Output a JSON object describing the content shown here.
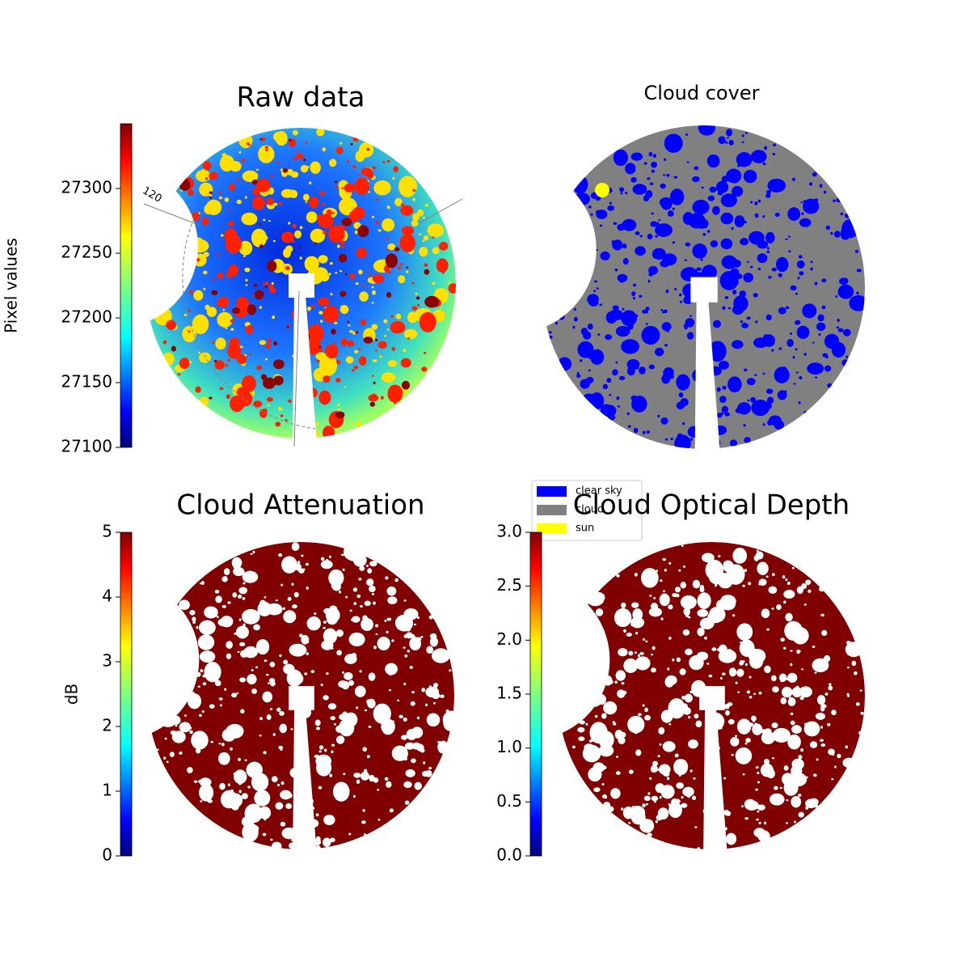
{
  "chart_data": [
    {
      "type": "image",
      "title": "Raw data",
      "colorbar_label": "Pixel values",
      "colormap": "jet",
      "clim": [
        27100,
        27350
      ],
      "cticks": [
        27100,
        27150,
        27200,
        27250,
        27300
      ],
      "annotations": [
        "120"
      ]
    },
    {
      "type": "categorical-image",
      "title": "Cloud cover",
      "series": [
        {
          "name": "clear sky",
          "color": "#0000ff"
        },
        {
          "name": "cloud",
          "color": "#808080"
        },
        {
          "name": "sun",
          "color": "#ffff00"
        }
      ]
    },
    {
      "type": "image",
      "title": "Cloud Attenuation",
      "colorbar_label": "dB",
      "colormap": "jet",
      "clim": [
        0,
        5
      ],
      "cticks": [
        0,
        1,
        2,
        3,
        4,
        5
      ]
    },
    {
      "type": "image",
      "title": "Cloud Optical Depth",
      "colormap": "jet",
      "clim": [
        0,
        3
      ],
      "cticks": [
        {
          "value": 0,
          "label": "0.0"
        },
        0.5,
        {
          "value": 1,
          "label": "1.0"
        },
        1.5,
        {
          "value": 2,
          "label": "2.0"
        },
        2.5,
        {
          "value": 3,
          "label": "3.0"
        }
      ]
    }
  ]
}
